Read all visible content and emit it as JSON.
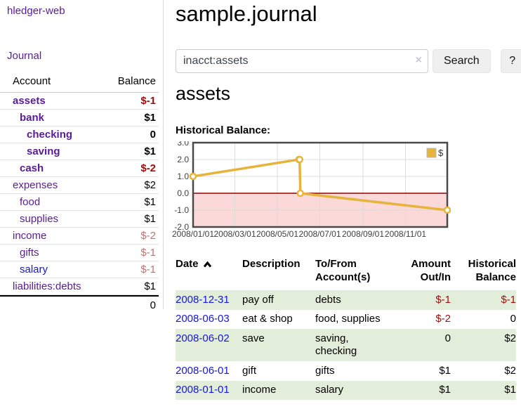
{
  "colors": {
    "link_purple": "#5a1b9a",
    "link_blue": "#1515dd",
    "negative_strong": "#a20d0d",
    "negative_dim": "#c17474",
    "row_stripe_green": "#e2eeda",
    "button_gray": "#efefef"
  },
  "sidebar": {
    "brand": "hledger-web",
    "journal_label": "Journal",
    "table": {
      "account_header": "Account",
      "balance_header": "Balance",
      "rows": [
        {
          "name": "assets",
          "balance": "$-1"
        },
        {
          "name": "bank",
          "balance": "$1"
        },
        {
          "name": "checking",
          "balance": "0"
        },
        {
          "name": "saving",
          "balance": "$1"
        },
        {
          "name": "cash",
          "balance": "$-2"
        },
        {
          "name": "expenses",
          "balance": "$2"
        },
        {
          "name": "food",
          "balance": "$1"
        },
        {
          "name": "supplies",
          "balance": "$1"
        },
        {
          "name": "income",
          "balance": "$-2"
        },
        {
          "name": "gifts",
          "balance": "$-1"
        },
        {
          "name": "salary",
          "balance": "$-1"
        },
        {
          "name": "liabilities:debts",
          "balance": "$1"
        }
      ],
      "total": "0"
    }
  },
  "main": {
    "title": "sample.journal",
    "search": {
      "value": "inacct:assets",
      "clear_icon": "×",
      "button_label": "Search",
      "help_label": "?"
    },
    "account_heading": "assets",
    "register": {
      "headers": [
        "Date",
        "Description",
        "To/From Account(s)",
        "Amount Out/In",
        "Historical Balance"
      ],
      "rows": [
        {
          "date": "2008-12-31",
          "description": "pay off",
          "accounts": "debts",
          "amount": "$-1",
          "balance": "$-1"
        },
        {
          "date": "2008-06-03",
          "description": "eat & shop",
          "accounts": "food, supplies",
          "amount": "$-2",
          "balance": "0"
        },
        {
          "date": "2008-06-02",
          "description": "save",
          "accounts": "saving, checking",
          "amount": "0",
          "balance": "$2"
        },
        {
          "date": "2008-06-01",
          "description": "gift",
          "accounts": "gifts",
          "amount": "$1",
          "balance": "$2"
        },
        {
          "date": "2008-01-01",
          "description": "income",
          "accounts": "salary",
          "amount": "$1",
          "balance": "$1"
        }
      ]
    }
  },
  "chart_data": {
    "type": "line",
    "title": "Historical Balance:",
    "legend": "$",
    "series": [
      {
        "name": "$",
        "color": "#e6b33d",
        "points": [
          {
            "x": "2008-01-01",
            "y": 1
          },
          {
            "x": "2008-06-01",
            "y": 2
          },
          {
            "x": "2008-06-02",
            "y": 2
          },
          {
            "x": "2008-06-03",
            "y": 0
          },
          {
            "x": "2008-12-31",
            "y": -1
          }
        ]
      }
    ],
    "x_ticks": [
      "2008/01/01",
      "2008/03/01",
      "2008/05/01",
      "2008/07/01",
      "2008/09/01",
      "2008/11/01"
    ],
    "y_ticks": [
      "3.0",
      "2.0",
      "1.0",
      "0.0",
      "-1.0",
      "-2.0"
    ],
    "xlim": [
      "2008-01-01",
      "2008-12-31"
    ],
    "ylim": [
      -2,
      3
    ],
    "grid": true,
    "legend_position": "top-right",
    "negative_region_color": "#fbd9d9",
    "zero_line_color": "#8f0000",
    "border_color": "#4a4a4a",
    "grid_color": "#dcdcdc"
  }
}
